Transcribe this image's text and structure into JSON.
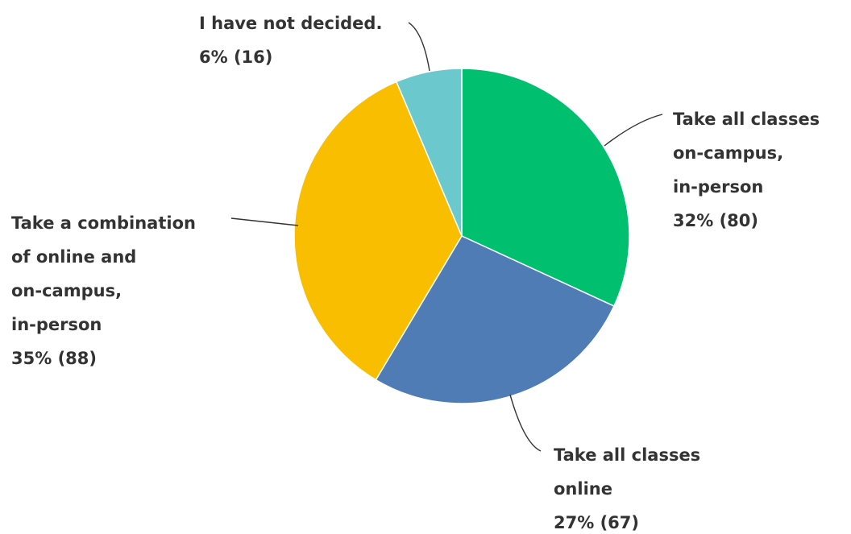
{
  "chart_data": {
    "type": "pie",
    "title": "",
    "slices": [
      {
        "name": "Take all classes on-campus, in-person",
        "label_lines": [
          "Take all classes",
          "on-campus,",
          "in-person"
        ],
        "percent_label": "32% (80)",
        "percent": 32,
        "count": 80,
        "color": "#00BF6F"
      },
      {
        "name": "Take all classes online",
        "label_lines": [
          "Take all classes",
          "online"
        ],
        "percent_label": "27% (67)",
        "percent": 27,
        "count": 67,
        "color": "#507CB6"
      },
      {
        "name": "Take a combination of online and on-campus, in-person",
        "label_lines": [
          "Take a combination",
          "of online and",
          "on-campus,",
          "in-person"
        ],
        "percent_label": "35% (88)",
        "percent": 35,
        "count": 88,
        "color": "#F9BE00"
      },
      {
        "name": "I have not decided.",
        "label_lines": [
          "I have not decided."
        ],
        "percent_label": "6% (16)",
        "percent": 6,
        "count": 16,
        "color": "#6BC8CD"
      }
    ],
    "start_angle": "12 o'clock",
    "direction": "clockwise",
    "legend": "none"
  }
}
